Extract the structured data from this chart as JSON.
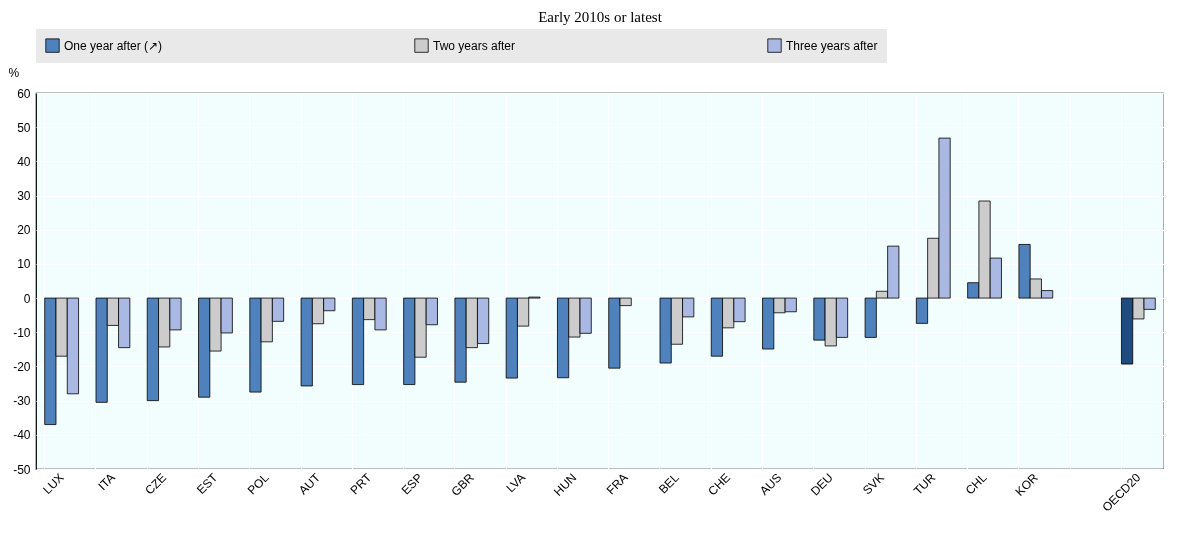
{
  "chart_data": {
    "type": "bar",
    "title": "Early 2010s or latest",
    "ylabel": "%",
    "categories": [
      "LUX",
      "ITA",
      "CZE",
      "EST",
      "POL",
      "AUT",
      "PRT",
      "ESP",
      "GBR",
      "LVA",
      "HUN",
      "FRA",
      "BEL",
      "CHE",
      "AUS",
      "DEU",
      "SVK",
      "TUR",
      "CHL",
      "KOR",
      null,
      "OECD20"
    ],
    "series": [
      {
        "name": "One year after (↗)",
        "color": "#4f81bd",
        "colors": [
          "#4f81bd",
          "#4f81bd",
          "#4f81bd",
          "#4f81bd",
          "#4f81bd",
          "#4f81bd",
          "#4f81bd",
          "#4f81bd",
          "#4f81bd",
          "#4f81bd",
          "#4f81bd",
          "#4f81bd",
          "#4f81bd",
          "#4f81bd",
          "#4f81bd",
          "#4f81bd",
          "#4f81bd",
          "#4f81bd",
          "#4f81bd",
          "#4f81bd",
          "#4f81bd",
          "#1f4b80"
        ],
        "values": [
          -37,
          -30.5,
          -30,
          -29,
          -27.5,
          -25.7,
          -25.3,
          -25.3,
          -24.6,
          -23.4,
          -23.3,
          -20.5,
          -19,
          -17,
          -14.9,
          -12.3,
          -11.5,
          -7.4,
          4.5,
          15.7,
          null,
          -19.3
        ]
      },
      {
        "name": "Two years after",
        "color": "#cccccc",
        "values": [
          -17,
          -8,
          -14.3,
          -15.5,
          -12.8,
          -7.5,
          -6.3,
          -17.3,
          -14.5,
          -8.2,
          -11.4,
          -2.2,
          -13.5,
          -8.7,
          -4.3,
          -14,
          2,
          17.5,
          28.4,
          5.6,
          null,
          -6.1
        ]
      },
      {
        "name": "Three years after",
        "color": "#a9b9e3",
        "values": [
          -28,
          -14.5,
          -9.3,
          -10.2,
          -6.8,
          -3.7,
          -9.3,
          -7.8,
          -13.3,
          0.3,
          -10.3,
          null,
          -5.5,
          -6.9,
          -4,
          -11.5,
          15.2,
          46.8,
          11.7,
          2.2,
          null,
          -3.3
        ]
      }
    ],
    "ylim": [
      -50,
      60
    ],
    "yticks": [
      -50,
      -40,
      -30,
      -20,
      -10,
      0,
      10,
      20,
      30,
      40,
      50,
      60
    ],
    "grid": true,
    "legend": "top"
  }
}
